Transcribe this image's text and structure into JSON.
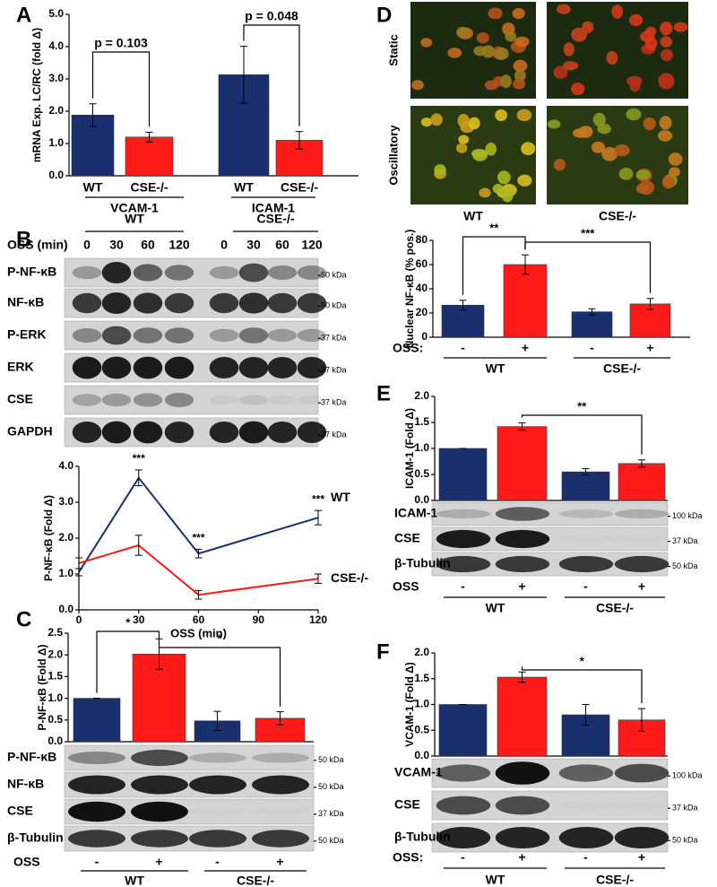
{
  "chart_data": [
    {
      "type": "bar",
      "panel": "A",
      "ylabel": "mRNA Exp. LC/RC (fold Δ)",
      "categories": [
        "WT",
        "CSE-/-",
        "WT",
        "CSE-/-"
      ],
      "groups": [
        "VCAM-1",
        "ICAM-1"
      ],
      "values": [
        1.88,
        1.2,
        3.13,
        1.1
      ],
      "errors": [
        0.35,
        0.15,
        0.88,
        0.27
      ],
      "colors": [
        "#1a2f6e",
        "#ff1a1a",
        "#1a2f6e",
        "#ff1a1a"
      ],
      "ylim": [
        0,
        5
      ],
      "yticks": [
        {
          "value": 0,
          "label": "0.0"
        },
        {
          "value": 1,
          "label": "1.0"
        },
        {
          "value": 2,
          "label": "2.0"
        },
        {
          "value": 3,
          "label": "3.0"
        },
        {
          "value": 4,
          "label": "4.0"
        },
        {
          "value": 5,
          "label": "5.0"
        }
      ],
      "annotations": [
        "p = 0.103",
        "p = 0.048"
      ]
    },
    {
      "type": "line",
      "ylabel": "P-NF-κB (Fold Δ)",
      "xlabel": "OSS (min)",
      "x": [
        0,
        30,
        60,
        120
      ],
      "xlim": [
        0,
        120
      ],
      "xticks": [
        0,
        30,
        60,
        90,
        120
      ],
      "ylim": [
        0,
        4
      ],
      "yticks": [
        {
          "value": 0,
          "label": "0.0"
        },
        {
          "value": 1,
          "label": "1.0"
        },
        {
          "value": 2,
          "label": "2.0"
        },
        {
          "value": 3,
          "label": "3.0"
        },
        {
          "value": 4,
          "label": "4.0"
        }
      ],
      "series": [
        {
          "name": "WT",
          "color": "#1a2f6e",
          "values": [
            1.05,
            3.68,
            1.57,
            2.57
          ],
          "errors": [
            0.1,
            0.22,
            0.12,
            0.2
          ]
        },
        {
          "name": "CSE-/-",
          "color": "#ff1a1a",
          "values": [
            1.3,
            1.8,
            0.42,
            0.87
          ],
          "errors": [
            0.15,
            0.28,
            0.12,
            0.13
          ]
        }
      ],
      "annotations": [
        "***",
        "***",
        "***"
      ]
    },
    {
      "type": "bar",
      "panel": "C",
      "ylabel": "P-NF-κB (Fold Δ)",
      "row_label": "OSS",
      "categories": [
        "-",
        "+",
        "-",
        "+"
      ],
      "groups": [
        "WT",
        "CSE-/-"
      ],
      "values": [
        1.0,
        2.02,
        0.48,
        0.54
      ],
      "errors": [
        0,
        0.35,
        0.22,
        0.15
      ],
      "colors": [
        "#1a2f6e",
        "#ff1a1a",
        "#1a2f6e",
        "#ff1a1a"
      ],
      "ylim": [
        0,
        2.5
      ],
      "yticks": [
        {
          "value": 0,
          "label": "0.0"
        },
        {
          "value": 0.5,
          "label": "0.5"
        },
        {
          "value": 1,
          "label": "1.0"
        },
        {
          "value": 1.5,
          "label": "1.5"
        },
        {
          "value": 2,
          "label": "2.0"
        },
        {
          "value": 2.5,
          "label": "2.5"
        }
      ],
      "annotations": [
        "*",
        "*"
      ]
    },
    {
      "type": "bar",
      "ylabel": "Nuclear NF-κB (% pos.)",
      "row_label": "OSS:",
      "categories": [
        "-",
        "+",
        "-",
        "+"
      ],
      "groups": [
        "WT",
        "CSE-/-"
      ],
      "values": [
        26.5,
        60,
        21,
        27.5
      ],
      "errors": [
        4,
        8,
        2.5,
        4.5
      ],
      "colors": [
        "#1a2f6e",
        "#ff1a1a",
        "#1a2f6e",
        "#ff1a1a"
      ],
      "ylim": [
        0,
        80
      ],
      "yticks": [
        0,
        20,
        40,
        60,
        80
      ],
      "annotations": [
        "**",
        "***"
      ]
    },
    {
      "type": "bar",
      "panel": "E",
      "ylabel": "ICAM-1 (Fold Δ)",
      "row_label": "OSS",
      "categories": [
        "-",
        "+",
        "-",
        "+"
      ],
      "groups": [
        "WT",
        "CSE-/-"
      ],
      "values": [
        1.0,
        1.42,
        0.55,
        0.71
      ],
      "errors": [
        0,
        0.07,
        0.06,
        0.07
      ],
      "colors": [
        "#1a2f6e",
        "#ff1a1a",
        "#1a2f6e",
        "#ff1a1a"
      ],
      "ylim": [
        0,
        2
      ],
      "yticks": [
        {
          "value": 0,
          "label": "0.0"
        },
        {
          "value": 0.5,
          "label": "0.5"
        },
        {
          "value": 1,
          "label": "1.0"
        },
        {
          "value": 1.5,
          "label": "1.5"
        },
        {
          "value": 2,
          "label": "2.0"
        }
      ],
      "annotations": [
        "**"
      ]
    },
    {
      "type": "bar",
      "panel": "F",
      "ylabel": "VCAM-1 (Fold Δ)",
      "row_label": "OSS:",
      "categories": [
        "-",
        "+",
        "-",
        "+"
      ],
      "groups": [
        "WT",
        "CSE-/-"
      ],
      "values": [
        1.0,
        1.53,
        0.8,
        0.7
      ],
      "errors": [
        0,
        0.1,
        0.2,
        0.22
      ],
      "colors": [
        "#1a2f6e",
        "#ff1a1a",
        "#1a2f6e",
        "#ff1a1a"
      ],
      "ylim": [
        0,
        2
      ],
      "yticks": [
        {
          "value": 0,
          "label": "0.0"
        },
        {
          "value": 0.5,
          "label": "0.5"
        },
        {
          "value": 1,
          "label": "1.0"
        },
        {
          "value": 1.5,
          "label": "1.5"
        },
        {
          "value": 2,
          "label": "2.0"
        }
      ],
      "annotations": [
        "*"
      ]
    }
  ],
  "blots": [
    {
      "panel": "B",
      "groups": [
        "WT",
        "CSE-/-"
      ],
      "row_label": "OSS (min)",
      "lanes": [
        "0",
        "30",
        "60",
        "120",
        "0",
        "30",
        "60",
        "120"
      ],
      "rows": [
        "P-NF-κB",
        "NF-κB",
        "P-ERK",
        "ERK",
        "CSE",
        "GAPDH"
      ],
      "kda": [
        "50 kDa",
        "50 kDa",
        "37 kDa",
        "37 kDa",
        "37 kDa",
        "37 kDa"
      ]
    },
    {
      "rows": [
        "P-NF-κB",
        "NF-κB",
        "CSE",
        "β-Tubulin"
      ],
      "kda": [
        "50 kDa",
        "50 kDa",
        "37 kDa",
        "50 kDa"
      ]
    },
    {
      "rows": [
        "ICAM-1",
        "CSE",
        "β-Tubulin"
      ],
      "kda": [
        "100 kDa",
        "37 kDa",
        "50 kDa"
      ]
    },
    {
      "rows": [
        "VCAM-1",
        "CSE",
        "β-Tubulin"
      ],
      "kda": [
        "100 kDa",
        "37 kDa",
        "50 kDa"
      ]
    }
  ],
  "micrographs": {
    "panel": "D",
    "rows": [
      "Static",
      "Oscillatory"
    ],
    "columns": [
      "WT",
      "CSE-/-"
    ]
  }
}
